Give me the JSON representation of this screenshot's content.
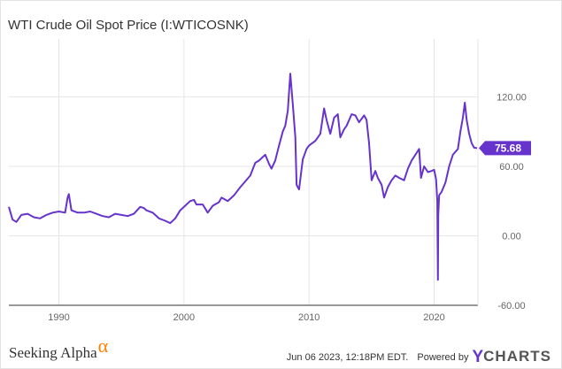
{
  "colors": {
    "line": "#6633cc",
    "grid": "#e6e6e6",
    "axis_text": "#666666",
    "brand_accent": "#ff7f00"
  },
  "chart_data": {
    "type": "line",
    "title": "WTI Crude Oil Spot Price (I:WTICOSNK)",
    "xlim": [
      1986,
      2023.5
    ],
    "ylim": [
      -60,
      170
    ],
    "x_ticks": [
      1990,
      2000,
      2010,
      2020
    ],
    "y_ticks": [
      120.0,
      60.0,
      0.0,
      -60.0
    ],
    "y_tick_labels": [
      "120.00",
      "60.00",
      "0.00",
      "-60.00"
    ],
    "grid": true,
    "last_value": 75.68,
    "last_value_label": "75.68",
    "series": [
      {
        "x": [
          1986.0,
          1986.3,
          1986.6,
          1987.0,
          1987.5,
          1988.0,
          1988.5,
          1989.0,
          1989.5,
          1990.0,
          1990.5,
          1990.7,
          1990.8,
          1991.0,
          1991.5,
          1992.0,
          1992.5,
          1993.0,
          1993.5,
          1994.0,
          1994.5,
          1995.0,
          1995.5,
          1996.0,
          1996.5,
          1996.8,
          1997.0,
          1997.5,
          1998.0,
          1998.5,
          1998.9,
          1999.3,
          1999.7,
          2000.0,
          2000.5,
          2000.8,
          2001.0,
          2001.5,
          2001.9,
          2002.3,
          2002.8,
          2003.0,
          2003.5,
          2004.0,
          2004.5,
          2004.9,
          2005.3,
          2005.7,
          2006.0,
          2006.5,
          2006.8,
          2007.0,
          2007.3,
          2007.6,
          2007.9,
          2008.1,
          2008.3,
          2008.5,
          2008.7,
          2008.9,
          2009.0,
          2009.2,
          2009.5,
          2009.8,
          2010.0,
          2010.5,
          2010.9,
          2011.2,
          2011.4,
          2011.7,
          2012.0,
          2012.3,
          2012.5,
          2012.8,
          2013.0,
          2013.4,
          2013.7,
          2014.0,
          2014.4,
          2014.6,
          2014.8,
          2015.0,
          2015.3,
          2015.5,
          2015.8,
          2016.0,
          2016.3,
          2016.6,
          2016.9,
          2017.2,
          2017.6,
          2017.9,
          2018.2,
          2018.5,
          2018.8,
          2018.95,
          2019.2,
          2019.5,
          2019.8,
          2020.0,
          2020.15,
          2020.25,
          2020.3,
          2020.33,
          2020.4,
          2020.6,
          2020.9,
          2021.2,
          2021.5,
          2021.9,
          2022.1,
          2022.3,
          2022.45,
          2022.6,
          2022.8,
          2023.0,
          2023.2,
          2023.43
        ],
        "y": [
          25,
          14,
          12,
          18,
          19,
          16,
          15,
          18,
          20,
          21,
          20,
          33,
          36,
          22,
          20,
          20,
          21,
          19,
          17,
          16,
          19,
          18,
          17,
          19,
          25,
          24,
          22,
          20,
          15,
          13,
          11,
          15,
          22,
          25,
          30,
          31,
          27,
          27,
          20,
          26,
          29,
          33,
          30,
          35,
          42,
          47,
          52,
          63,
          65,
          70,
          62,
          58,
          65,
          78,
          90,
          95,
          108,
          140,
          114,
          85,
          44,
          40,
          66,
          75,
          78,
          82,
          88,
          110,
          100,
          88,
          102,
          105,
          85,
          92,
          95,
          105,
          104,
          98,
          104,
          100,
          80,
          48,
          56,
          50,
          44,
          33,
          42,
          48,
          52,
          50,
          48,
          58,
          65,
          70,
          75,
          50,
          60,
          55,
          56,
          57,
          49,
          30,
          -38,
          18,
          35,
          38,
          46,
          60,
          70,
          75,
          90,
          102,
          115,
          100,
          88,
          80,
          76,
          75.68
        ]
      }
    ]
  },
  "footer": {
    "brand_text": "Seeking Alpha",
    "brand_symbol": "α",
    "timestamp": "Jun 06 2023, 12:18PM EDT.",
    "powered_by": "Powered by",
    "ycharts_y": "Y",
    "ycharts_text": "CHARTS"
  }
}
